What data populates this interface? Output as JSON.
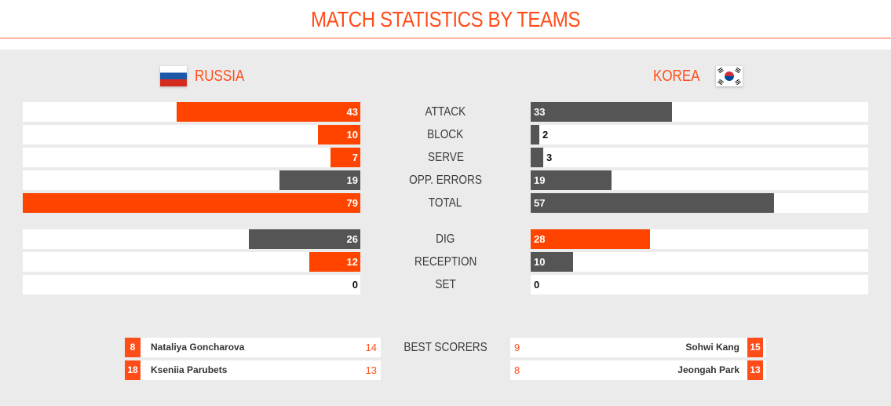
{
  "header": {
    "title": "MATCH STATISTICS BY TEAMS"
  },
  "teams": {
    "left": {
      "name": "RUSSIA",
      "flag": "russia-flag-icon"
    },
    "right": {
      "name": "KOREA",
      "flag": "korea-flag-icon"
    }
  },
  "colors": {
    "accent": "#ff4400",
    "neutral": "#555555",
    "panel": "#ecebeb"
  },
  "stats": [
    {
      "label": "ATTACK",
      "left": 43,
      "right": 33,
      "left_highlight": true,
      "right_highlight": false
    },
    {
      "label": "BLOCK",
      "left": 10,
      "right": 2,
      "left_highlight": true,
      "right_highlight": false
    },
    {
      "label": "SERVE",
      "left": 7,
      "right": 3,
      "left_highlight": true,
      "right_highlight": false
    },
    {
      "label": "OPP. ERRORS",
      "left": 19,
      "right": 19,
      "left_highlight": false,
      "right_highlight": false
    },
    {
      "label": "TOTAL",
      "left": 79,
      "right": 57,
      "left_highlight": true,
      "right_highlight": false
    },
    {
      "label": "DIG",
      "left": 26,
      "right": 28,
      "left_highlight": false,
      "right_highlight": true
    },
    {
      "label": "RECEPTION",
      "left": 12,
      "right": 10,
      "left_highlight": true,
      "right_highlight": false
    },
    {
      "label": "SET",
      "left": 0,
      "right": 0,
      "left_highlight": false,
      "right_highlight": false
    }
  ],
  "best_scorers": {
    "label": "BEST SCORERS",
    "left": [
      {
        "number": "8",
        "name": "Nataliya Goncharova",
        "points": "14"
      },
      {
        "number": "18",
        "name": "Kseniia Parubets",
        "points": "13"
      }
    ],
    "right": [
      {
        "number": "15",
        "name": "Sohwi Kang",
        "points": "9"
      },
      {
        "number": "13",
        "name": "Jeongah Park",
        "points": "8"
      }
    ]
  }
}
